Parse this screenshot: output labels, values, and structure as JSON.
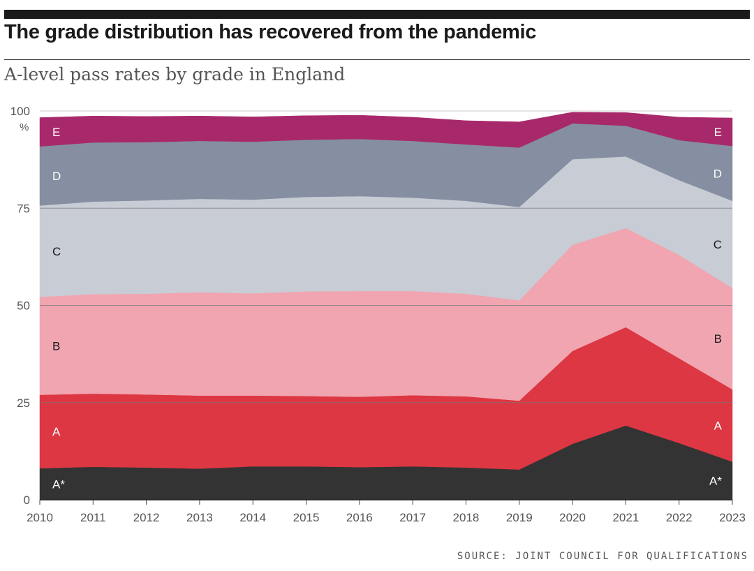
{
  "header": {
    "title": "The grade distribution has recovered from the pandemic",
    "subtitle": "A-level pass rates by grade in England"
  },
  "source": "SOURCE: JOINT COUNCIL FOR QUALIFICATIONS",
  "chart_data": {
    "type": "area",
    "stacked": true,
    "title": "The grade distribution has recovered from the pandemic",
    "subtitle": "A-level pass rates by grade in England",
    "x": [
      2010,
      2011,
      2012,
      2013,
      2014,
      2015,
      2016,
      2017,
      2018,
      2019,
      2020,
      2021,
      2022,
      2023
    ],
    "x_tick_labels": [
      "2010",
      "2011",
      "2012",
      "2013",
      "2014",
      "2015",
      "2016",
      "2017",
      "2018",
      "2019",
      "2020",
      "2021",
      "2022",
      "2023"
    ],
    "ylim": [
      0,
      100
    ],
    "y_ticks": [
      0,
      25,
      50,
      75,
      100
    ],
    "y_tick_labels": [
      "0",
      "25",
      "50",
      "75",
      "100"
    ],
    "y_unit_label": "%",
    "gridlines": true,
    "xlabel": "",
    "ylabel": "",
    "series": [
      {
        "name": "A*",
        "color": "#333333",
        "label_color": "#ffffff",
        "values": [
          8.1,
          8.5,
          8.3,
          8.0,
          8.6,
          8.6,
          8.4,
          8.6,
          8.3,
          7.8,
          14.4,
          19.1,
          14.6,
          9.8
        ]
      },
      {
        "name": "A",
        "color": "#dc3742",
        "label_color": "#ffffff",
        "values": [
          18.9,
          18.8,
          18.8,
          18.8,
          18.2,
          18.1,
          18.1,
          18.3,
          18.3,
          17.7,
          23.9,
          25.3,
          21.8,
          18.6
        ]
      },
      {
        "name": "B",
        "color": "#f0a5b0",
        "label_color": "#1a1a1a",
        "values": [
          25.2,
          25.6,
          25.9,
          26.6,
          26.3,
          26.9,
          27.2,
          26.8,
          26.4,
          25.8,
          27.3,
          25.5,
          26.6,
          26.1
        ]
      },
      {
        "name": "C",
        "color": "#c8ccd5",
        "label_color": "#1a1a1a",
        "values": [
          23.5,
          23.8,
          24.0,
          24.0,
          24.1,
          24.3,
          24.4,
          24.0,
          23.9,
          24.0,
          22.0,
          18.4,
          19.2,
          22.4
        ]
      },
      {
        "name": "D",
        "color": "#858fa1",
        "label_color": "#ffffff",
        "values": [
          15.2,
          15.2,
          15.0,
          14.9,
          14.9,
          14.7,
          14.7,
          14.6,
          14.5,
          15.3,
          9.2,
          7.9,
          10.3,
          14.1
        ]
      },
      {
        "name": "E",
        "color": "#a8296b",
        "label_color": "#ffffff",
        "values": [
          7.4,
          6.8,
          6.6,
          6.4,
          6.4,
          6.2,
          6.1,
          6.1,
          6.1,
          6.6,
          2.9,
          3.4,
          5.9,
          7.2
        ]
      }
    ]
  }
}
